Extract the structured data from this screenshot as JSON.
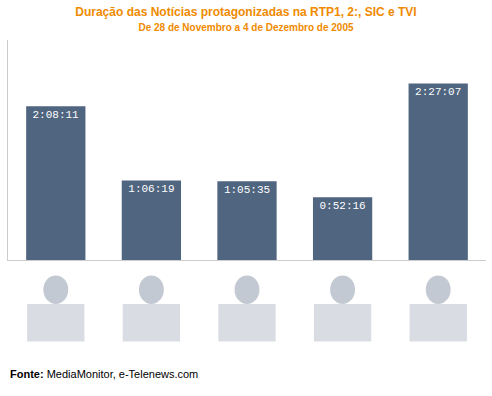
{
  "chart_data": {
    "type": "bar",
    "title": "Duração das Notícias protagonizadas na RTP1, 2:, SIC e TVI",
    "subtitle": "De 28 de Novembro a 4 de Dezembro de 2005",
    "categories": [
      null,
      null,
      null,
      null,
      null
    ],
    "values": [
      7691,
      3979,
      3935,
      3136,
      8827
    ],
    "value_labels": [
      "2:08:11",
      "1:06:19",
      "1:05:35",
      "0:52:16",
      "2:27:07"
    ],
    "data_labels": true,
    "color": "#506580",
    "ylim": [
      0,
      11000
    ],
    "yticks": [],
    "tick_labels": false,
    "grid": false,
    "annotations": [
      "Fonte: MediaMonitor, e-Telenews.com"
    ]
  }
}
